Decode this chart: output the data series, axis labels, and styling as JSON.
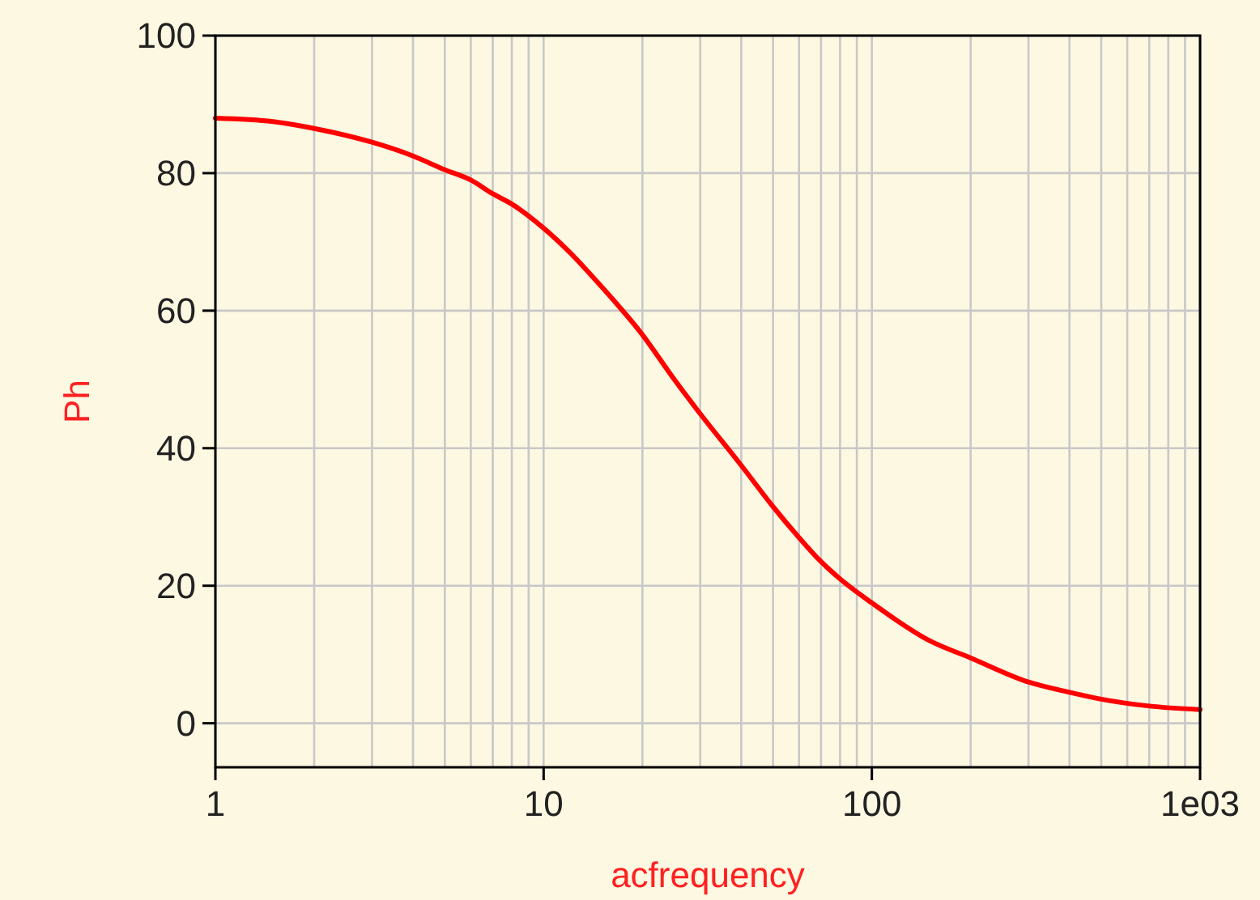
{
  "chart_data": {
    "type": "line",
    "xlabel": "acfrequency",
    "ylabel": "Ph",
    "log": "x",
    "grid": true,
    "marker": "none",
    "line_style": "solid",
    "xlim": [
      1,
      1000
    ],
    "ylim": [
      -6.4,
      100
    ],
    "xticks": [
      1,
      {
        "value": 2,
        "label": null
      },
      {
        "value": 3,
        "label": null
      },
      {
        "value": 4,
        "label": null
      },
      {
        "value": 5,
        "label": null
      },
      {
        "value": 6,
        "label": null
      },
      {
        "value": 7,
        "label": null
      },
      {
        "value": 8,
        "label": null
      },
      {
        "value": 9,
        "label": null
      },
      10,
      {
        "value": 20,
        "label": null
      },
      {
        "value": 30,
        "label": null
      },
      {
        "value": 40,
        "label": null
      },
      {
        "value": 50,
        "label": null
      },
      {
        "value": 60,
        "label": null
      },
      {
        "value": 70,
        "label": null
      },
      {
        "value": 80,
        "label": null
      },
      {
        "value": 90,
        "label": null
      },
      100,
      {
        "value": 200,
        "label": null
      },
      {
        "value": 300,
        "label": null
      },
      {
        "value": 400,
        "label": null
      },
      {
        "value": 500,
        "label": null
      },
      {
        "value": 600,
        "label": null
      },
      {
        "value": 700,
        "label": null
      },
      {
        "value": 800,
        "label": null
      },
      {
        "value": 900,
        "label": null
      },
      {
        "value": 1000,
        "label": "1e03"
      }
    ],
    "yticks": [
      0,
      20,
      40,
      60,
      80,
      100
    ],
    "x": [
      1,
      1.5,
      2,
      3,
      4,
      5,
      6,
      7,
      8,
      10,
      12,
      15,
      20,
      25,
      30,
      40,
      50,
      60,
      70,
      80,
      100,
      150,
      200,
      300,
      400,
      500,
      700,
      1000
    ],
    "series": [
      {
        "color": "#ff0000",
        "values": [
          88,
          87.5,
          86.5,
          84.5,
          82.5,
          80.5,
          79,
          77,
          75.5,
          72,
          68.5,
          63.5,
          56.5,
          50,
          45,
          37.5,
          31.5,
          27,
          23.5,
          21,
          17.5,
          12,
          9.5,
          6,
          4.5,
          3.5,
          2.5,
          2
        ]
      }
    ]
  }
}
